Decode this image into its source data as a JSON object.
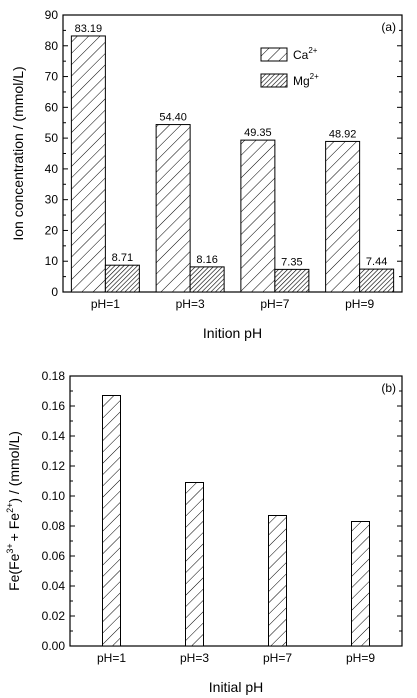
{
  "figure": {
    "background_color": "#ffffff",
    "ink_color": "#000000"
  },
  "chart_data": [
    {
      "type": "bar",
      "panel_label": "(a)",
      "xlabel": "Inition pH",
      "ylabel": "Ion concentration / (mmol/L)",
      "categories": [
        "pH=1",
        "pH=3",
        "pH=7",
        "pH=9"
      ],
      "series": [
        {
          "name": "Ca2+",
          "name_base": "Ca",
          "name_sup": "2+",
          "pattern": "sparse-diagonal-hatch",
          "values": [
            83.19,
            54.4,
            49.35,
            48.92
          ],
          "labels": [
            "83.19",
            "54.40",
            "49.35",
            "48.92"
          ]
        },
        {
          "name": "Mg2+",
          "name_base": "Mg",
          "name_sup": "2+",
          "pattern": "dense-diagonal-hatch",
          "values": [
            8.71,
            8.16,
            7.35,
            7.44
          ],
          "labels": [
            "8.71",
            "8.16",
            "7.35",
            "7.44"
          ]
        }
      ],
      "ylim": [
        0,
        90
      ],
      "yticks": [
        0,
        10,
        20,
        30,
        40,
        50,
        60,
        70,
        80,
        90
      ],
      "ytick_labels": [
        "0",
        "10",
        "20",
        "30",
        "40",
        "50",
        "60",
        "70",
        "80",
        "90"
      ],
      "legend_position": "top-right",
      "grid": false
    },
    {
      "type": "bar",
      "panel_label": "(b)",
      "xlabel": "Initial pH",
      "ylabel": "Fe(Fe3+ + Fe2+) / (mmol/L)",
      "ylabel_parts": {
        "prefix": "Fe(Fe",
        "sup1": "3+",
        "middle": "+ Fe",
        "sup2": "2+",
        "suffix": ") / (mmol/L)"
      },
      "categories": [
        "pH=1",
        "pH=3",
        "pH=7",
        "pH=9"
      ],
      "series": [
        {
          "name": "Fe",
          "pattern": "sparse-diagonal-hatch",
          "values": [
            0.167,
            0.109,
            0.087,
            0.083
          ]
        }
      ],
      "ylim": [
        0,
        0.18
      ],
      "yticks": [
        0,
        0.02,
        0.04,
        0.06,
        0.08,
        0.1,
        0.12,
        0.14,
        0.16,
        0.18
      ],
      "ytick_labels": [
        "0.00",
        "0.02",
        "0.04",
        "0.06",
        "0.08",
        "0.10",
        "0.12",
        "0.14",
        "0.16",
        "0.18"
      ],
      "grid": false
    }
  ]
}
